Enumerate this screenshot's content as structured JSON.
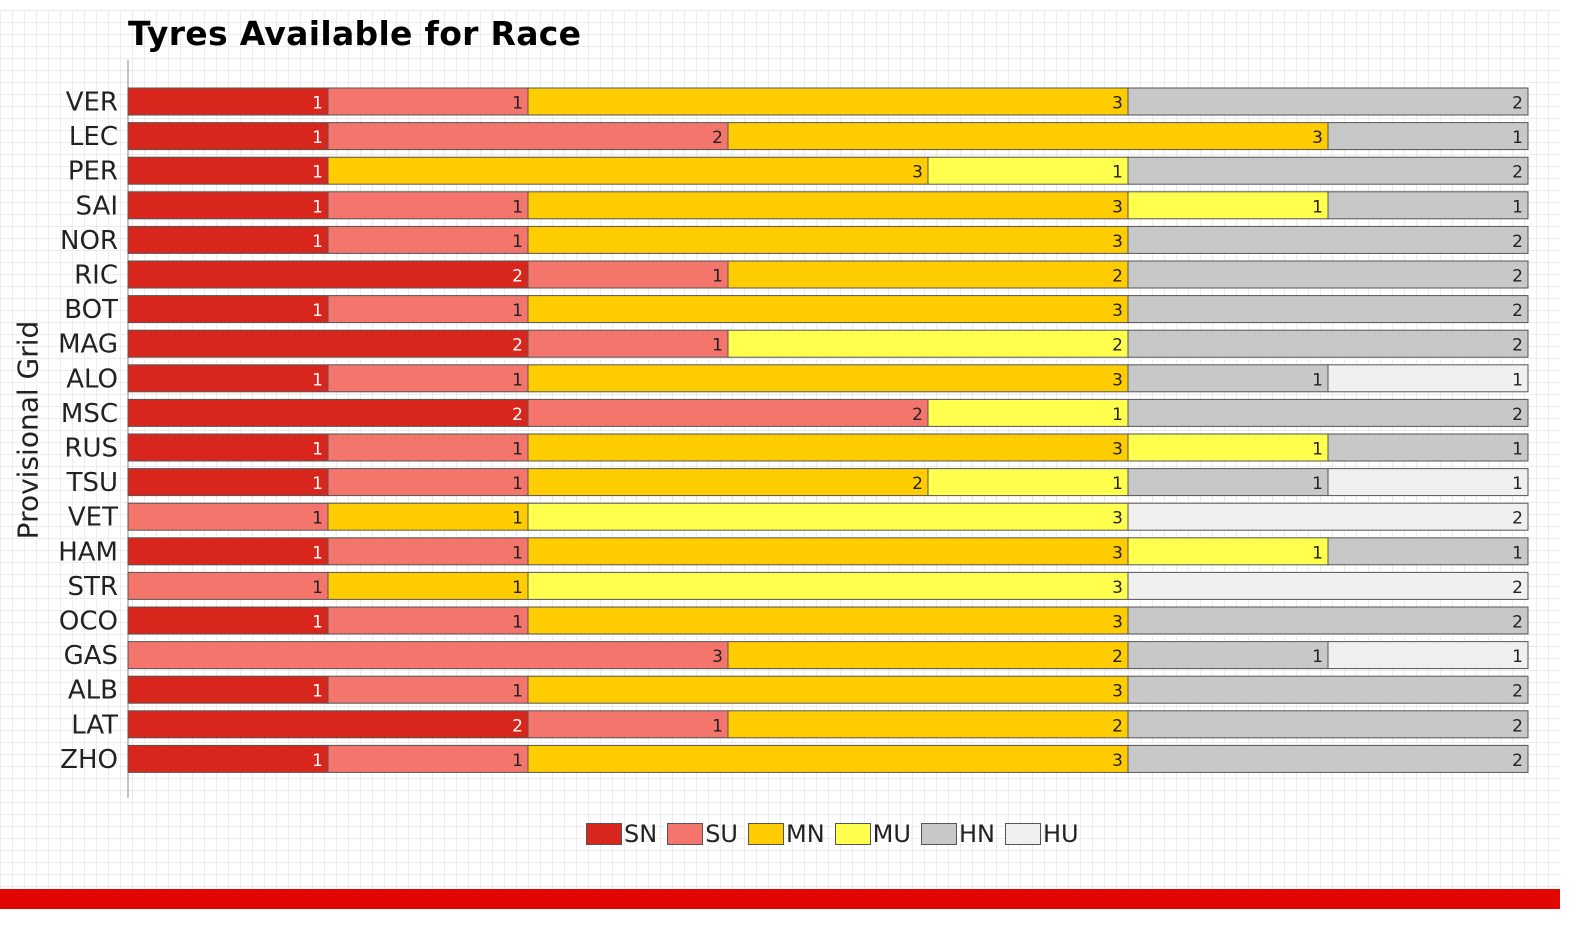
{
  "chart_data": {
    "type": "bar",
    "orientation": "horizontal",
    "stacked": true,
    "title": "Tyres Available for Race",
    "ylabel": "Provisional Grid",
    "xlabel": "",
    "xlim": [
      0,
      7
    ],
    "legend_position": "bottom",
    "categories": [
      "VER",
      "LEC",
      "PER",
      "SAI",
      "NOR",
      "RIC",
      "BOT",
      "MAG",
      "ALO",
      "MSC",
      "RUS",
      "TSU",
      "VET",
      "HAM",
      "STR",
      "OCO",
      "GAS",
      "ALB",
      "LAT",
      "ZHO"
    ],
    "series": [
      {
        "name": "SN",
        "color": "#d9261c",
        "values": [
          1,
          1,
          1,
          1,
          1,
          2,
          1,
          2,
          1,
          2,
          1,
          1,
          0,
          1,
          0,
          1,
          0,
          1,
          2,
          1
        ]
      },
      {
        "name": "SU",
        "color": "#f4756b",
        "values": [
          1,
          2,
          0,
          1,
          1,
          1,
          1,
          1,
          1,
          2,
          1,
          1,
          1,
          1,
          1,
          1,
          3,
          1,
          1,
          1
        ]
      },
      {
        "name": "MN",
        "color": "#ffcc00",
        "values": [
          3,
          3,
          3,
          3,
          3,
          2,
          3,
          0,
          3,
          0,
          3,
          2,
          1,
          3,
          1,
          3,
          2,
          3,
          2,
          3
        ]
      },
      {
        "name": "MU",
        "color": "#ffff4d",
        "values": [
          0,
          0,
          1,
          1,
          0,
          0,
          0,
          2,
          0,
          1,
          1,
          1,
          3,
          1,
          3,
          0,
          0,
          0,
          0,
          0
        ]
      },
      {
        "name": "HN",
        "color": "#c8c8c8",
        "values": [
          2,
          1,
          2,
          1,
          2,
          2,
          2,
          2,
          1,
          2,
          1,
          1,
          0,
          1,
          0,
          2,
          1,
          2,
          2,
          2
        ]
      },
      {
        "name": "HU",
        "color": "#f0f0f0",
        "values": [
          0,
          0,
          0,
          0,
          0,
          0,
          0,
          0,
          1,
          0,
          0,
          1,
          2,
          0,
          2,
          0,
          1,
          0,
          0,
          0
        ]
      }
    ]
  },
  "footer_color": "#e10600"
}
